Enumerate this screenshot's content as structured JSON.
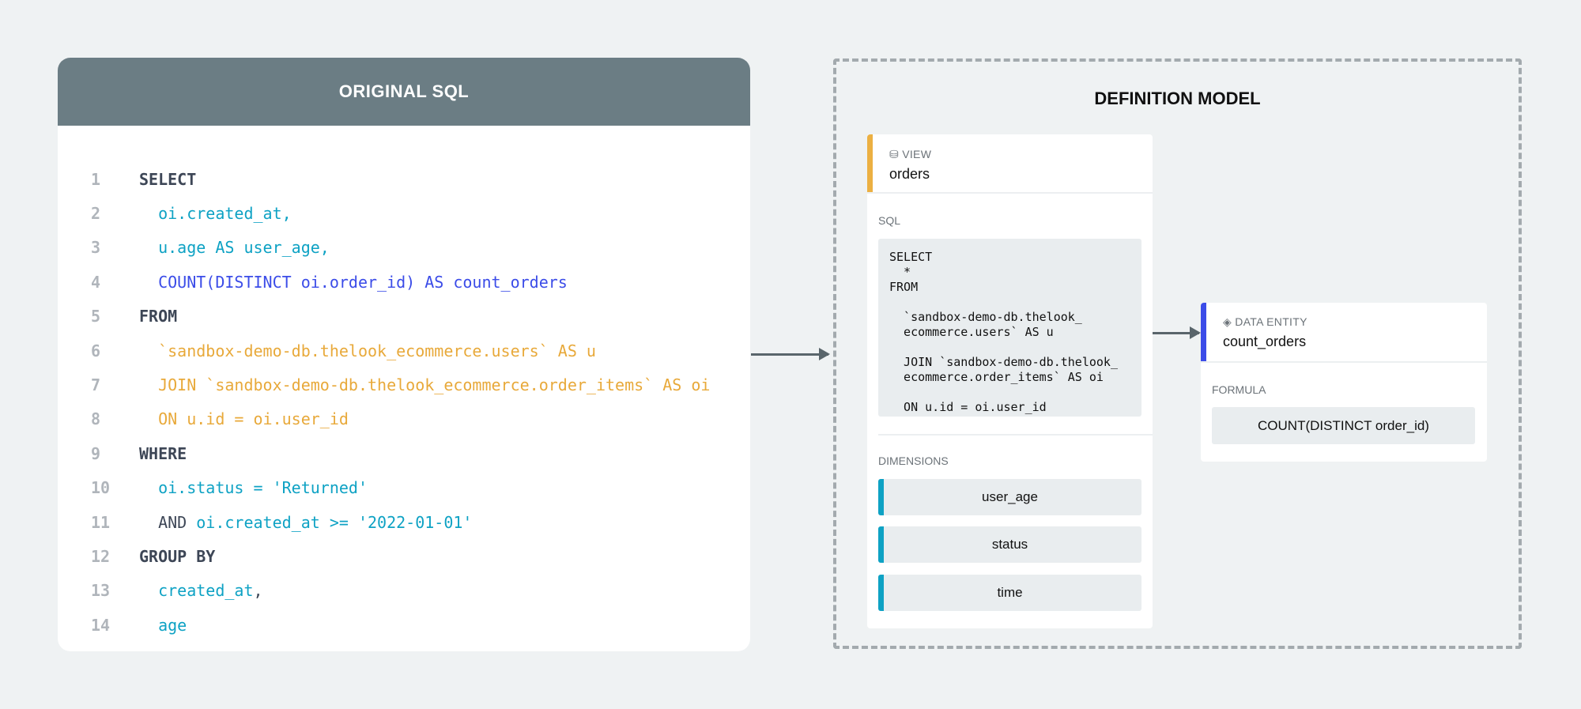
{
  "original_sql": {
    "title": "ORIGINAL SQL",
    "lines": [
      {
        "n": "1",
        "segs": [
          {
            "t": "SELECT",
            "c": "k"
          }
        ]
      },
      {
        "n": "2",
        "segs": [
          {
            "t": "  oi.created_at,",
            "c": "c"
          }
        ]
      },
      {
        "n": "3",
        "segs": [
          {
            "t": "  u.age AS user_age,",
            "c": "c"
          }
        ]
      },
      {
        "n": "4",
        "segs": [
          {
            "t": "  COUNT(DISTINCT oi.order_id) AS count_orders",
            "c": "b"
          }
        ]
      },
      {
        "n": "5",
        "segs": [
          {
            "t": "FROM",
            "c": "k"
          }
        ]
      },
      {
        "n": "6",
        "segs": [
          {
            "t": "  `sandbox-demo-db.thelook_ecommerce.users` AS u",
            "c": "o"
          }
        ]
      },
      {
        "n": "7",
        "segs": [
          {
            "t": "  JOIN `sandbox-demo-db.thelook_ecommerce.order_items` AS oi",
            "c": "o"
          }
        ]
      },
      {
        "n": "8",
        "segs": [
          {
            "t": "  ON u.id = oi.user_id",
            "c": "o"
          }
        ]
      },
      {
        "n": "9",
        "segs": [
          {
            "t": "WHERE",
            "c": "k"
          }
        ]
      },
      {
        "n": "10",
        "segs": [
          {
            "t": "  oi.status = 'Returned'",
            "c": "c"
          }
        ]
      },
      {
        "n": "11",
        "segs": [
          {
            "t": "  AND ",
            "c": "d"
          },
          {
            "t": "oi.created_at >= '2022-01-01'",
            "c": "c"
          }
        ]
      },
      {
        "n": "12",
        "segs": [
          {
            "t": "GROUP BY",
            "c": "k"
          }
        ]
      },
      {
        "n": "13",
        "segs": [
          {
            "t": "  created_at",
            "c": "c"
          },
          {
            "t": ",",
            "c": "d"
          }
        ]
      },
      {
        "n": "14",
        "segs": [
          {
            "t": "  age",
            "c": "c"
          }
        ]
      }
    ]
  },
  "definition_model": {
    "title": "DEFINITION MODEL",
    "view": {
      "icon": "database-icon",
      "type_label": "VIEW",
      "name": "orders",
      "accent": "#ecb042",
      "sql_label": "SQL",
      "sql": "SELECT\n  *\nFROM\n\n  `sandbox-demo-db.thelook_\n  ecommerce.users` AS u\n\n  JOIN `sandbox-demo-db.thelook_\n  ecommerce.order_items` AS oi\n\n  ON u.id = oi.user_id",
      "dimensions_label": "DIMENSIONS",
      "dimensions": [
        "user_age",
        "status",
        "time"
      ]
    },
    "entity": {
      "icon": "layers-icon",
      "type_label": "DATA ENTITY",
      "name": "count_orders",
      "accent": "#3b4ce8",
      "formula_label": "FORMULA",
      "formula": "COUNT(DISTINCT order_id)"
    }
  }
}
